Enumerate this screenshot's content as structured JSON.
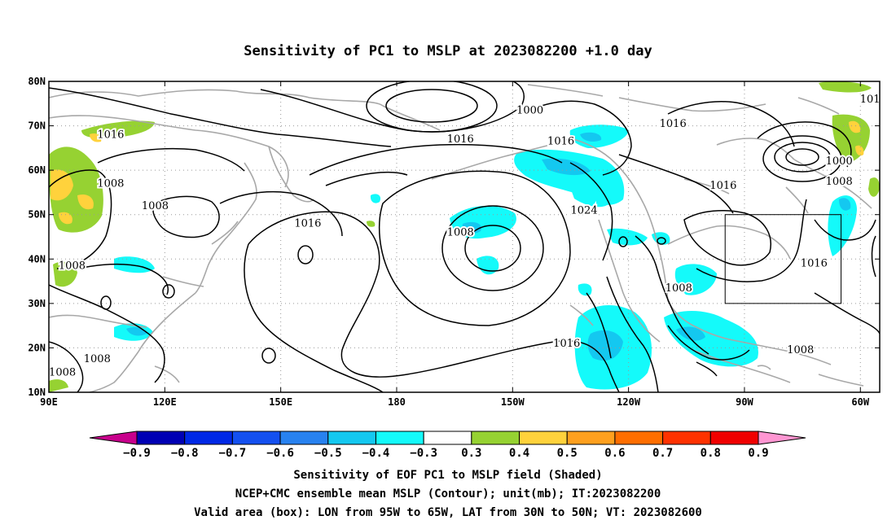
{
  "title": "Sensitivity of PC1 to MSLP at 2023082200 +1.0 day",
  "map": {
    "lat_labels": [
      "80N",
      "70N",
      "60N",
      "50N",
      "40N",
      "30N",
      "20N",
      "10N"
    ],
    "lon_labels": [
      "90E",
      "120E",
      "150E",
      "180",
      "150W",
      "120W",
      "90W",
      "60W"
    ],
    "extent": {
      "lon_min": 90,
      "lon_max": 305,
      "lat_min": 10,
      "lat_max": 80
    },
    "gridlines": "dotted every 30° lon and 10° lat",
    "contour_labels": [
      {
        "text": "1000",
        "lon": 214.5,
        "lat": 73.5
      },
      {
        "text": "1016",
        "lon": 106,
        "lat": 68
      },
      {
        "text": "1016",
        "lon": 196.5,
        "lat": 67
      },
      {
        "text": "1016",
        "lon": 222.5,
        "lat": 66.5
      },
      {
        "text": "1016",
        "lon": 251.5,
        "lat": 70.5
      },
      {
        "text": "1016",
        "lon": 264.5,
        "lat": 56.5
      },
      {
        "text": "1000",
        "lon": 294.5,
        "lat": 62
      },
      {
        "text": "1008",
        "lon": 294.5,
        "lat": 57.5
      },
      {
        "text": "1008",
        "lon": 106,
        "lat": 57
      },
      {
        "text": "1008",
        "lon": 117.5,
        "lat": 52
      },
      {
        "text": "1016",
        "lon": 157,
        "lat": 48
      },
      {
        "text": "1008",
        "lon": 196.5,
        "lat": 46
      },
      {
        "text": "1024",
        "lon": 228.5,
        "lat": 51
      },
      {
        "text": "1008",
        "lon": 96,
        "lat": 38.5
      },
      {
        "text": "1016",
        "lon": 288,
        "lat": 39
      },
      {
        "text": "1008",
        "lon": 253,
        "lat": 33.5
      },
      {
        "text": "1016",
        "lon": 224,
        "lat": 21
      },
      {
        "text": "1008",
        "lon": 284.5,
        "lat": 19.5
      },
      {
        "text": "1008",
        "lon": 102.5,
        "lat": 17.5
      },
      {
        "text": "1008",
        "lon": 93.5,
        "lat": 14.5
      },
      {
        "text": "101",
        "lon": 302.5,
        "lat": 76
      }
    ],
    "valid_box": {
      "lon_min": 265,
      "lon_max": 295,
      "lat_min": 30,
      "lat_max": 50
    }
  },
  "colorbar": {
    "labels": [
      "−0.9",
      "−0.8",
      "−0.7",
      "−0.6",
      "−0.5",
      "−0.4",
      "−0.3",
      "0.3",
      "0.4",
      "0.5",
      "0.6",
      "0.7",
      "0.8",
      "0.9"
    ],
    "colors": [
      "#0000b4",
      "#0028e6",
      "#1450f0",
      "#2882f0",
      "#14c8f0",
      "#14fafa",
      "#ffffff",
      "#96d232",
      "#ffd23c",
      "#ffa01e",
      "#ff6e00",
      "#ff3200",
      "#f00000"
    ],
    "under_color": "#c8008c",
    "over_color": "#ff96d2"
  },
  "captions": {
    "line1": "Sensitivity of EOF PC1 to MSLP field (Shaded)",
    "line2": "NCEP+CMC ensemble mean MSLP (Contour); unit(mb); IT:2023082200",
    "line3": "Valid area (box): LON from 95W to 65W, LAT from 30N to 50N; VT: 2023082600"
  }
}
